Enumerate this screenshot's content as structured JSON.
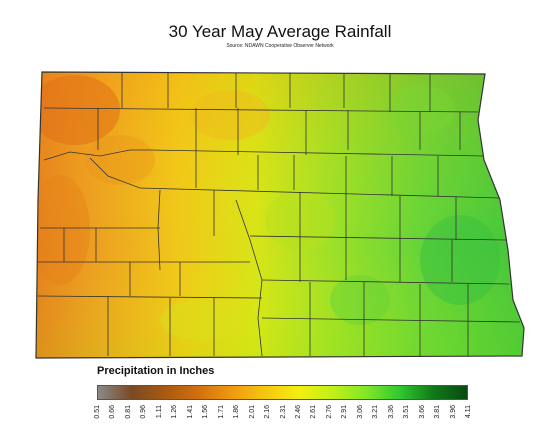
{
  "title": "30 Year May Average Rainfall",
  "source": "Source: NDAWN Cooperative Observer Network",
  "legend": {
    "title": "Precipitation in Inches",
    "ticks": [
      "0.51",
      "0.66",
      "0.81",
      "0.96",
      "1.11",
      "1.26",
      "1.41",
      "1.56",
      "1.71",
      "1.86",
      "2.01",
      "2.16",
      "2.31",
      "2.46",
      "2.61",
      "2.76",
      "2.91",
      "3.06",
      "3.21",
      "3.36",
      "3.51",
      "3.66",
      "3.81",
      "3.96",
      "4.11"
    ],
    "colors": [
      "#8a8a8a",
      "#7a4a25",
      "#a85a10",
      "#d27010",
      "#f09a10",
      "#f5c810",
      "#f2ef10",
      "#c0f018",
      "#80e828",
      "#30c830",
      "#0f7a18",
      "#0a4a10"
    ]
  },
  "map_colors": {
    "west": "#ec9a20",
    "central": "#d8c818",
    "east": "#72d838",
    "far_east": "#3ec840",
    "border": "#333333"
  }
}
